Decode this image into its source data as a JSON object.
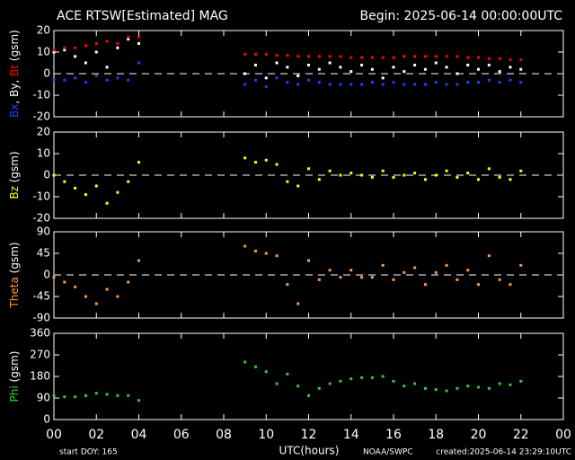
{
  "header": {
    "title": "ACE RTSW[Estimated] MAG",
    "begin": "Begin: 2025-06-14 00:00:00UTC"
  },
  "footer": {
    "start": "start DOY:  165",
    "xlabel": "UTC(hours)",
    "source": "NOAA/SWPC",
    "created": "created:2025-06-14 23:29:10UTC"
  },
  "chart_data": [
    {
      "type": "scatter",
      "zero_line": true,
      "ylabel": [
        {
          "text": "Bx",
          "color": "#2040ff"
        },
        {
          "text": ", ",
          "color": "#ffffff"
        },
        {
          "text": "By",
          "color": "#ffffff"
        },
        {
          "text": ", ",
          "color": "#ffffff"
        },
        {
          "text": "Bt",
          "color": "#ff0000"
        },
        {
          "text": " (gsm)",
          "color": "#ffffff"
        }
      ],
      "x": [
        0,
        0.5,
        1,
        1.5,
        2,
        2.5,
        3,
        3.5,
        4,
        9,
        9.5,
        10,
        10.5,
        11,
        11.5,
        12,
        12.5,
        13,
        13.5,
        14,
        14.5,
        15,
        15.5,
        16,
        16.5,
        17,
        17.5,
        18,
        18.5,
        19,
        19.5,
        20,
        20.5,
        21,
        21.5,
        22
      ],
      "ylim": [
        -20,
        20
      ],
      "yticks": [
        -20,
        -10,
        0,
        10,
        20
      ],
      "series": [
        {
          "name": "Bx",
          "color": "#2040ff",
          "values": [
            -3,
            -3,
            -2,
            -4,
            -1,
            -3,
            -2,
            -3,
            5,
            -5,
            -3,
            -6,
            -2,
            -4,
            -5,
            -3,
            -4,
            -5,
            -5,
            -5,
            -5,
            -4,
            -5,
            -4,
            -5,
            -5,
            -5,
            -4,
            -5,
            -5,
            -4,
            -4,
            -3,
            -4,
            -3,
            -4
          ]
        },
        {
          "name": "By",
          "color": "#ffffff",
          "values": [
            10,
            11,
            8,
            5,
            10,
            3,
            12,
            16,
            14,
            0,
            4,
            -2,
            5,
            3,
            -1,
            4,
            2,
            5,
            3,
            1,
            4,
            2,
            -2,
            3,
            1,
            4,
            2,
            5,
            3,
            0,
            4,
            2,
            4,
            1,
            3,
            2
          ]
        },
        {
          "name": "Bt",
          "color": "#ff0000",
          "values": [
            11,
            12,
            12,
            13,
            14,
            15,
            14,
            17,
            17,
            9,
            9,
            9,
            8.5,
            8.5,
            8,
            8,
            8,
            8,
            8,
            7.5,
            7.5,
            7.5,
            7.5,
            7.5,
            8,
            8,
            8,
            8,
            8,
            8,
            7.5,
            7.5,
            7,
            7,
            6.5,
            6.5
          ]
        }
      ]
    },
    {
      "type": "scatter",
      "zero_line": true,
      "ylabel": [
        {
          "text": "Bz",
          "color": "#ffff00"
        },
        {
          "text": " (gsm)",
          "color": "#ffffff"
        }
      ],
      "x": [
        0,
        0.5,
        1,
        1.5,
        2,
        2.5,
        3,
        3.5,
        4,
        9,
        9.5,
        10,
        10.5,
        11,
        11.5,
        12,
        12.5,
        13,
        13.5,
        14,
        14.5,
        15,
        15.5,
        16,
        16.5,
        17,
        17.5,
        18,
        18.5,
        19,
        19.5,
        20,
        20.5,
        21,
        21.5,
        22
      ],
      "ylim": [
        -20,
        20
      ],
      "yticks": [
        -20,
        -10,
        0,
        10,
        20
      ],
      "series": [
        {
          "name": "Bz",
          "color": "#ffff00",
          "values": [
            0,
            -3,
            -6,
            -9,
            -5,
            -13,
            -8,
            -3,
            6,
            8,
            6,
            7,
            5,
            -3,
            -5,
            3,
            -2,
            2,
            0,
            1,
            0,
            -1,
            2,
            -1,
            0,
            1,
            -2,
            0,
            2,
            -1,
            1,
            -2,
            3,
            -1,
            -2,
            2
          ]
        }
      ]
    },
    {
      "type": "scatter",
      "zero_line": true,
      "ylabel": [
        {
          "text": "Theta",
          "color": "#ff9933"
        },
        {
          "text": " (gsm)",
          "color": "#ffffff"
        }
      ],
      "x": [
        0,
        0.5,
        1,
        1.5,
        2,
        2.5,
        3,
        3.5,
        4,
        9,
        9.5,
        10,
        10.5,
        11,
        11.5,
        12,
        12.5,
        13,
        13.5,
        14,
        14.5,
        15,
        15.5,
        16,
        16.5,
        17,
        17.5,
        18,
        18.5,
        19,
        19.5,
        20,
        20.5,
        21,
        21.5,
        22
      ],
      "ylim": [
        -90,
        90
      ],
      "yticks": [
        -90,
        -45,
        0,
        45,
        90
      ],
      "series": [
        {
          "name": "Theta",
          "color": "#ff9933",
          "values": [
            -5,
            -15,
            -25,
            -45,
            -60,
            -30,
            -45,
            -15,
            30,
            60,
            50,
            45,
            40,
            -20,
            -60,
            30,
            -10,
            10,
            -5,
            10,
            -5,
            -5,
            20,
            -10,
            5,
            15,
            -20,
            5,
            20,
            -10,
            10,
            -20,
            40,
            -10,
            -20,
            20
          ]
        }
      ]
    },
    {
      "type": "scatter",
      "zero_line": false,
      "ylabel": [
        {
          "text": "Phi",
          "color": "#33cc33"
        },
        {
          "text": " (gsm)",
          "color": "#ffffff"
        }
      ],
      "x": [
        0,
        0.5,
        1,
        1.5,
        2,
        2.5,
        3,
        3.5,
        4,
        9,
        9.5,
        10,
        10.5,
        11,
        11.5,
        12,
        12.5,
        13,
        13.5,
        14,
        14.5,
        15,
        15.5,
        16,
        16.5,
        17,
        17.5,
        18,
        18.5,
        19,
        19.5,
        20,
        20.5,
        21,
        21.5,
        22
      ],
      "ylim": [
        0,
        360
      ],
      "yticks": [
        0,
        90,
        180,
        270,
        360
      ],
      "xlim": [
        0,
        24
      ],
      "xticks": [
        {
          "value": 0,
          "label": "00"
        },
        {
          "value": 2,
          "label": "02"
        },
        {
          "value": 4,
          "label": "04"
        },
        {
          "value": 6,
          "label": "06"
        },
        {
          "value": 8,
          "label": "08"
        },
        10,
        12,
        14,
        16,
        18,
        20,
        22,
        {
          "value": 24,
          "label": "00"
        }
      ],
      "series": [
        {
          "name": "Phi",
          "color": "#33cc33",
          "values": [
            100,
            95,
            95,
            100,
            110,
            105,
            100,
            100,
            80,
            240,
            220,
            200,
            150,
            190,
            140,
            100,
            130,
            150,
            160,
            170,
            175,
            175,
            180,
            160,
            140,
            150,
            130,
            125,
            120,
            130,
            140,
            135,
            130,
            150,
            145,
            160
          ]
        }
      ]
    }
  ]
}
